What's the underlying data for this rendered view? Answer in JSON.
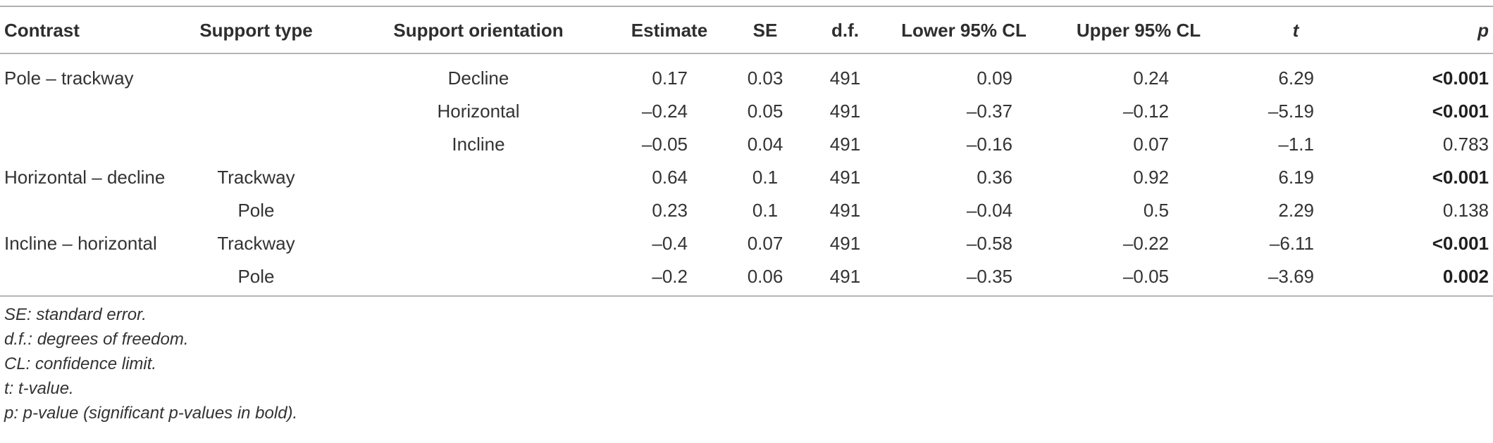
{
  "table": {
    "headers": [
      "Contrast",
      "Support type",
      "Support orientation",
      "Estimate",
      "SE",
      "d.f.",
      "Lower 95% CL",
      "Upper 95% CL",
      "t",
      "p"
    ],
    "rows": [
      {
        "contrast": "Pole – trackway",
        "type": "",
        "orientation": "Decline",
        "estimate": "0.17",
        "se": "0.03",
        "df": "491",
        "lower": "0.09",
        "upper": "0.24",
        "t": "6.29",
        "p": "<0.001",
        "p_bold": true
      },
      {
        "contrast": "",
        "type": "",
        "orientation": "Horizontal",
        "estimate": "–0.24",
        "se": "0.05",
        "df": "491",
        "lower": "–0.37",
        "upper": "–0.12",
        "t": "–5.19",
        "p": "<0.001",
        "p_bold": true
      },
      {
        "contrast": "",
        "type": "",
        "orientation": "Incline",
        "estimate": "–0.05",
        "se": "0.04",
        "df": "491",
        "lower": "–0.16",
        "upper": "0.07",
        "t": "–1.1",
        "p": "0.783",
        "p_bold": false
      },
      {
        "contrast": "Horizontal – decline",
        "type": "Trackway",
        "orientation": "",
        "estimate": "0.64",
        "se": "0.1",
        "df": "491",
        "lower": "0.36",
        "upper": "0.92",
        "t": "6.19",
        "p": "<0.001",
        "p_bold": true
      },
      {
        "contrast": "",
        "type": "Pole",
        "orientation": "",
        "estimate": "0.23",
        "se": "0.1",
        "df": "491",
        "lower": "–0.04",
        "upper": "0.5",
        "t": "2.29",
        "p": "0.138",
        "p_bold": false
      },
      {
        "contrast": "Incline – horizontal",
        "type": "Trackway",
        "orientation": "",
        "estimate": "–0.4",
        "se": "0.07",
        "df": "491",
        "lower": "–0.58",
        "upper": "–0.22",
        "t": "–6.11",
        "p": "<0.001",
        "p_bold": true
      },
      {
        "contrast": "",
        "type": "Pole",
        "orientation": "",
        "estimate": "–0.2",
        "se": "0.06",
        "df": "491",
        "lower": "–0.35",
        "upper": "–0.05",
        "t": "–3.69",
        "p": "0.002",
        "p_bold": true
      }
    ]
  },
  "footnotes": [
    "SE: standard error.",
    "d.f.: degrees of freedom.",
    "CL: confidence limit.",
    "t: t-value.",
    "p: p-value (significant p-values in bold)."
  ]
}
